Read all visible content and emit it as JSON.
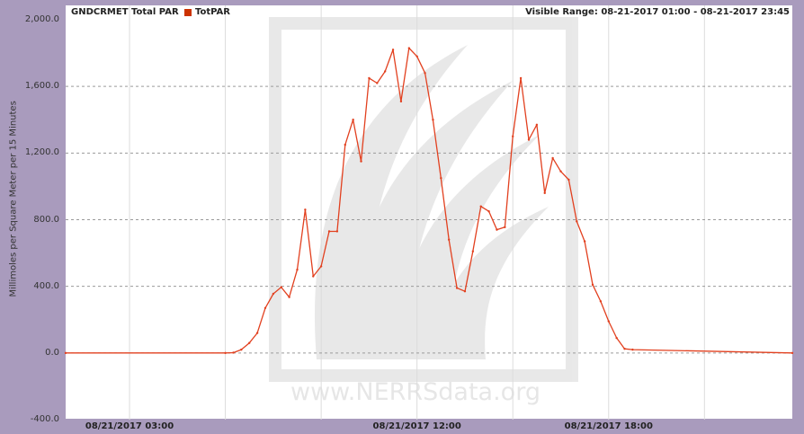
{
  "header": {
    "title": "GNDCRMET Total PAR",
    "legend_label": "TotPAR",
    "visible_range": "Visible Range: 08-21-2017 01:00 - 08-21-2017 23:45"
  },
  "watermark": "www.NERRSdata.org",
  "colors": {
    "series": "#e2401f",
    "legend": "#cc3300",
    "frame": "#a99bbd"
  },
  "chart_data": {
    "type": "line",
    "title": "GNDCRMET Total PAR",
    "xlabel": "",
    "ylabel": "Millimoles per Square Meter per 15 Minutes",
    "ylim": [
      -400,
      2000
    ],
    "xlim_hours": [
      1.0,
      23.75
    ],
    "y_ticks": [
      {
        "value": 2000,
        "label": "2,000.0"
      },
      {
        "value": 1600,
        "label": "1,600.0"
      },
      {
        "value": 1200,
        "label": "1,200.0"
      },
      {
        "value": 800,
        "label": "800.0"
      },
      {
        "value": 400,
        "label": "400.0"
      },
      {
        "value": 0,
        "label": "0.0"
      },
      {
        "value": -400,
        "label": "-400.0"
      }
    ],
    "x_ticks": [
      {
        "hour": 3,
        "label": "08/21/2017 03:00"
      },
      {
        "hour": 12,
        "label": "08/21/2017 12:00"
      },
      {
        "hour": 18,
        "label": "08/21/2017 18:00"
      }
    ],
    "x_gridlines_hours": [
      3,
      6,
      9,
      12,
      15,
      18,
      21
    ],
    "y_dashed_gridlines": [
      1600,
      1200,
      800,
      400
    ],
    "series": [
      {
        "name": "TotPAR",
        "x_hours": [
          1.0,
          6.0,
          6.25,
          6.5,
          6.75,
          7.0,
          7.25,
          7.5,
          7.75,
          8.0,
          8.25,
          8.5,
          8.75,
          9.0,
          9.25,
          9.5,
          9.75,
          10.0,
          10.25,
          10.5,
          10.75,
          11.0,
          11.25,
          11.5,
          11.75,
          12.0,
          12.25,
          12.5,
          12.75,
          13.0,
          13.25,
          13.5,
          13.75,
          14.0,
          14.25,
          14.5,
          14.75,
          15.0,
          15.25,
          15.5,
          15.75,
          16.0,
          16.25,
          16.5,
          16.75,
          17.0,
          17.25,
          17.5,
          17.75,
          18.0,
          18.25,
          18.5,
          18.75,
          23.75
        ],
        "values": [
          0,
          0,
          2,
          20,
          60,
          120,
          270,
          355,
          395,
          335,
          500,
          860,
          460,
          520,
          730,
          730,
          1250,
          1400,
          1150,
          1650,
          1620,
          1690,
          1820,
          1510,
          1830,
          1780,
          1680,
          1400,
          1050,
          680,
          390,
          370,
          610,
          880,
          850,
          740,
          755,
          1300,
          1650,
          1280,
          1370,
          960,
          1170,
          1090,
          1040,
          790,
          670,
          410,
          310,
          190,
          90,
          25,
          20,
          0
        ]
      }
    ]
  }
}
